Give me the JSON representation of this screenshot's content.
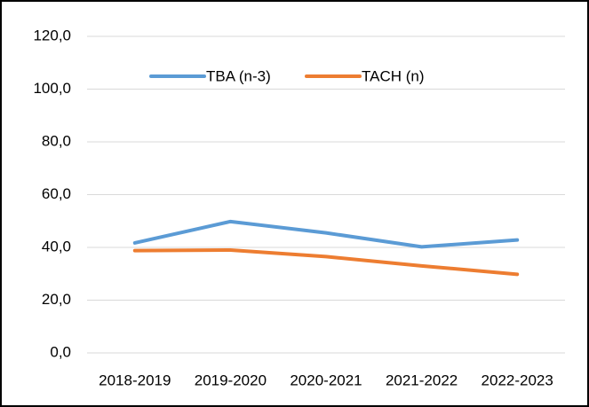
{
  "chart_data": {
    "type": "line",
    "categories": [
      "2018-2019",
      "2019-2020",
      "2020-2021",
      "2021-2022",
      "2022-2023"
    ],
    "series": [
      {
        "name": "TBA (n-3)",
        "color": "#5b9bd5",
        "values": [
          41.7,
          49.8,
          45.5,
          40.2,
          42.8
        ]
      },
      {
        "name": "TACH (n)",
        "color": "#ed7d31",
        "values": [
          38.8,
          39.0,
          36.5,
          33.0,
          29.8
        ]
      }
    ],
    "ylim": [
      0,
      120
    ],
    "yticks": [
      {
        "value": 0,
        "label": "0,0"
      },
      {
        "value": 20,
        "label": "20,0"
      },
      {
        "value": 40,
        "label": "40,0"
      },
      {
        "value": 60,
        "label": "60,0"
      },
      {
        "value": 80,
        "label": "80,0"
      },
      {
        "value": 100,
        "label": "100,0"
      },
      {
        "value": 120,
        "label": "120,0"
      }
    ],
    "grid": true,
    "legend": "top"
  }
}
